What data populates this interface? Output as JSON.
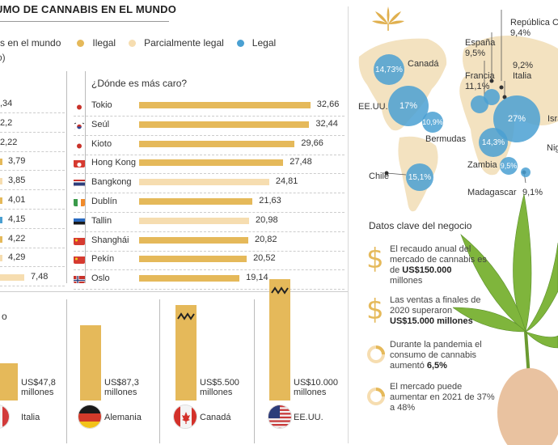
{
  "header": {
    "title": "UMO DE CANNABIS EN EL MUNDO",
    "subtitle_fragment": "s en el mundo",
    "subtitle_unit_fragment": "o)"
  },
  "legend": [
    {
      "label": "Ilegal",
      "color": "#e5b95a"
    },
    {
      "label": "Parcialmente legal",
      "color": "#f6ddb0"
    },
    {
      "label": "Legal",
      "color": "#4aa0d2"
    }
  ],
  "colors": {
    "illegal": "#e5b95a",
    "partial": "#f6ddb0",
    "legal": "#4aa0d2",
    "map": "#f3e2c0"
  },
  "left_values": [
    {
      "label": ",34",
      "status": "illegal"
    },
    {
      "label": "2,2",
      "status": "illegal"
    },
    {
      "label": "2,22",
      "status": "illegal"
    },
    {
      "label": "3,79",
      "status": "illegal"
    },
    {
      "label": "3,85",
      "status": "partial"
    },
    {
      "label": "4,01",
      "status": "illegal"
    },
    {
      "label": "4,15",
      "status": "legal"
    },
    {
      "label": "4,22",
      "status": "illegal"
    },
    {
      "label": "4,29",
      "status": "partial"
    },
    {
      "label": "7,48",
      "status": "partial"
    }
  ],
  "chart_data": [
    {
      "type": "bar",
      "title": "¿Dónde es más caro?",
      "categories": [
        "Tokio",
        "Seúl",
        "Kioto",
        "Hong Kong",
        "Bangkong",
        "Dublín",
        "Tallin",
        "Shanghái",
        "Pekín",
        "Oslo"
      ],
      "values": [
        32.66,
        32.44,
        29.66,
        27.48,
        24.81,
        21.63,
        20.98,
        20.82,
        20.52,
        19.14
      ],
      "labels": [
        "32,66",
        "32,44",
        "29,66",
        "27,48",
        "24,81",
        "21,63",
        "20,98",
        "20,82",
        "20,52",
        "19,14"
      ],
      "status": [
        "illegal",
        "illegal",
        "illegal",
        "illegal",
        "partial",
        "illegal",
        "partial",
        "illegal",
        "illegal",
        "illegal"
      ],
      "xlim": [
        0,
        33
      ]
    },
    {
      "type": "bar",
      "title": "o",
      "categories": [
        "Italia",
        "Alemania",
        "Canadá",
        "EE.UU."
      ],
      "values": [
        47.8,
        87.3,
        5500,
        10000
      ],
      "labels": [
        "US$47,8 millones",
        "US$87,3 millones",
        "US$5.500 millones",
        "US$10.000 millones"
      ],
      "axis_break": [
        false,
        false,
        true,
        true
      ]
    }
  ],
  "map": {
    "labels": {
      "republica": "República C",
      "republica_val": "9,4%",
      "espana": "España",
      "espana_val": "9,5%",
      "canada": "Canadá",
      "francia": "Francia",
      "francia_val": "11,1%",
      "italia_val": "9,2%",
      "italia": "Italia",
      "eeuu": "EE.UU.",
      "isr": "Isra",
      "bermudas": "Bermudas",
      "nig": "Nig",
      "chile": "Chile",
      "zambia": "Zambia",
      "madagascar": "Madagascar",
      "madagascar_val": "9,1%"
    },
    "bubbles": {
      "canada": "14,73%",
      "eeuu": "17%",
      "bermudas": "10,9%",
      "isr": "27%",
      "nig": "14,3%",
      "zambia": "9,5%",
      "chile": "15,1%"
    }
  },
  "facts": {
    "title": "Datos clave del negocio",
    "items": [
      {
        "text": "El recaudo anual del mercado de cannabis es de",
        "bold": "US$150.000",
        "after": "millones",
        "icon": "dollar-icon"
      },
      {
        "text": "Las ventas a finales de 2020 superaron",
        "bold": "US$15.000 millones",
        "after": "",
        "icon": "dollar-icon"
      },
      {
        "text": "Durante la pandemia el consumo de cannabis aumentó",
        "bold": "6,5%",
        "after": "",
        "icon": "ring-icon"
      },
      {
        "text": "El mercado puede aumentar en 2021 de 37% a 48%",
        "bold": "",
        "after": "",
        "icon": "ring-icon"
      }
    ]
  }
}
